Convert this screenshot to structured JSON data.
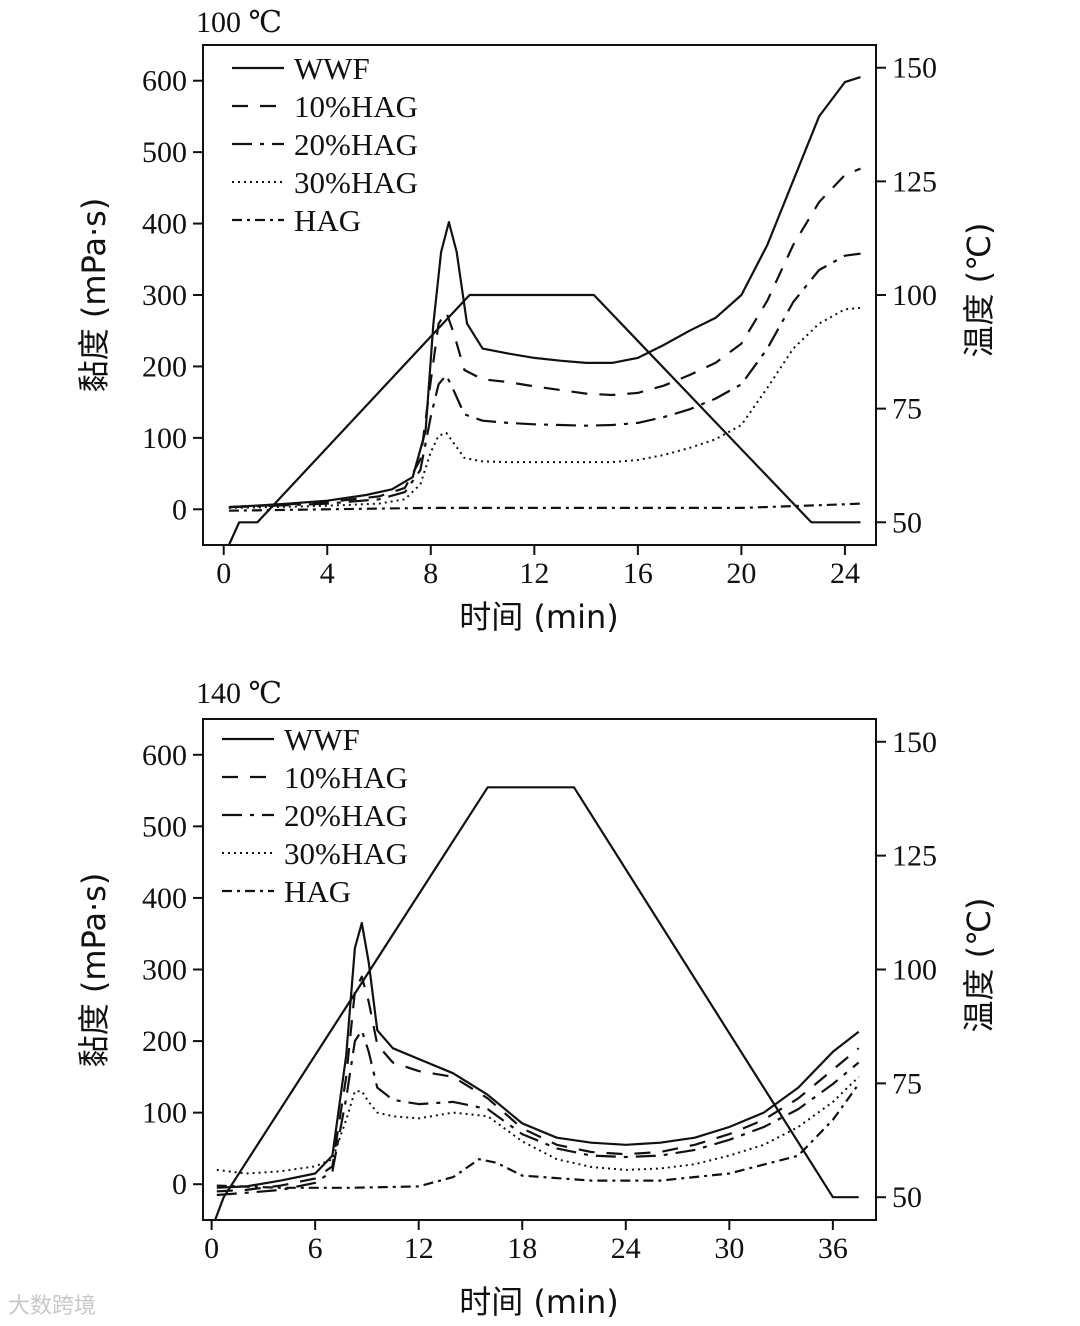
{
  "chart_data": [
    {
      "type": "line",
      "title": "100 ℃",
      "xlabel": "时间 (min)",
      "ylabel": "黏度 (mPa·s)",
      "y2label": "温度 (℃)",
      "xlim": [
        -0.8,
        25.2
      ],
      "ylim": [
        -50,
        650
      ],
      "y2lim": [
        45,
        155
      ],
      "xticks": [
        0,
        4,
        8,
        12,
        16,
        20,
        24
      ],
      "xtick_labels": [
        "0",
        "4",
        "8",
        "12",
        "16",
        "20",
        "24"
      ],
      "yticks": [
        0,
        100,
        200,
        300,
        400,
        500,
        600
      ],
      "ytick_labels": [
        "0",
        "100",
        "200",
        "300",
        "400",
        "500",
        "600"
      ],
      "y2ticks": [
        50,
        75,
        100,
        125,
        150
      ],
      "y2tick_labels": [
        "50",
        "75",
        "100",
        "125",
        "150"
      ],
      "legend_position": "top-left",
      "series": [
        {
          "name": "WWF",
          "style": "solid",
          "x": [
            0.2,
            1.2,
            2.5,
            4,
            5.5,
            6.5,
            7.3,
            7.8,
            8.1,
            8.4,
            8.7,
            9,
            9.4,
            10,
            11,
            12,
            13,
            14,
            15,
            16,
            17,
            18,
            19,
            20,
            21,
            22,
            23,
            24,
            24.6
          ],
          "y": [
            3,
            5,
            8,
            12,
            20,
            28,
            45,
            110,
            260,
            360,
            402,
            360,
            260,
            225,
            218,
            212,
            208,
            205,
            205,
            212,
            230,
            250,
            268,
            300,
            370,
            460,
            550,
            598,
            605
          ]
        },
        {
          "name": "10%HAG",
          "x": [
            0.2,
            2,
            4,
            6,
            7,
            7.6,
            8,
            8.3,
            8.6,
            8.9,
            9.3,
            10,
            11,
            12,
            13,
            14,
            15,
            16,
            17,
            18,
            19,
            20,
            21,
            22,
            23,
            24,
            24.6
          ],
          "y": [
            3,
            6,
            10,
            18,
            30,
            70,
            180,
            260,
            276,
            245,
            195,
            182,
            178,
            172,
            167,
            162,
            160,
            163,
            173,
            188,
            205,
            232,
            292,
            370,
            430,
            468,
            477
          ]
        },
        {
          "name": "20%HAG",
          "x": [
            0.2,
            2,
            4,
            6,
            7,
            7.6,
            8,
            8.3,
            8.6,
            8.9,
            9.3,
            10,
            11,
            12,
            13,
            14,
            15,
            16,
            17,
            18,
            19,
            20,
            21,
            22,
            23,
            24,
            24.6
          ],
          "y": [
            3,
            5,
            8,
            14,
            24,
            55,
            130,
            175,
            188,
            165,
            133,
            124,
            121,
            119,
            118,
            117,
            118,
            121,
            129,
            140,
            155,
            175,
            225,
            290,
            335,
            355,
            358
          ]
        },
        {
          "name": "30%HAG",
          "x": [
            0.2,
            2,
            4,
            6,
            7,
            7.6,
            8,
            8.3,
            8.6,
            8.9,
            9.3,
            10,
            11,
            12,
            13,
            14,
            15,
            16,
            17,
            18,
            19,
            20,
            21,
            22,
            23,
            24,
            24.6
          ],
          "y": [
            2,
            3,
            5,
            8,
            14,
            35,
            80,
            103,
            107,
            92,
            72,
            67,
            66,
            66,
            66,
            66,
            66,
            69,
            76,
            86,
            98,
            118,
            170,
            225,
            260,
            280,
            282
          ]
        },
        {
          "name": "HAG",
          "x": [
            0.2,
            4,
            8,
            12,
            16,
            20,
            24,
            24.6
          ],
          "y": [
            -2,
            0,
            2,
            2,
            2,
            2,
            7,
            8
          ]
        },
        {
          "name": "温度",
          "axis": "right",
          "x": [
            0.2,
            0.6,
            1.3,
            9.5,
            14.3,
            22.7,
            24.6
          ],
          "y": [
            45,
            50,
            50,
            100,
            100,
            50,
            50
          ]
        }
      ]
    },
    {
      "type": "line",
      "title": "140 ℃",
      "xlabel": "时间 (min)",
      "ylabel": "黏度 (mPa·s)",
      "y2label": "温度 (℃)",
      "xlim": [
        -0.5,
        38.5
      ],
      "ylim": [
        -50,
        650
      ],
      "y2lim": [
        45,
        155
      ],
      "xticks": [
        0,
        6,
        12,
        18,
        24,
        30,
        36
      ],
      "xtick_labels": [
        "0",
        "6",
        "12",
        "18",
        "24",
        "30",
        "36"
      ],
      "yticks": [
        0,
        100,
        200,
        300,
        400,
        500,
        600
      ],
      "ytick_labels": [
        "0",
        "100",
        "200",
        "300",
        "400",
        "500",
        "600"
      ],
      "y2ticks": [
        50,
        75,
        100,
        125,
        150
      ],
      "y2tick_labels": [
        "50",
        "75",
        "100",
        "125",
        "150"
      ],
      "legend_position": "top-left",
      "series": [
        {
          "name": "WWF",
          "style": "solid",
          "x": [
            0.3,
            2,
            4,
            6,
            7,
            7.8,
            8.3,
            8.7,
            9.1,
            9.6,
            10.5,
            12,
            14,
            16,
            18,
            20,
            22,
            24,
            26,
            28,
            30,
            32,
            34,
            36,
            37.5
          ],
          "y": [
            -5,
            -3,
            5,
            15,
            40,
            180,
            330,
            365,
            310,
            215,
            190,
            175,
            155,
            125,
            85,
            65,
            58,
            55,
            58,
            65,
            80,
            100,
            135,
            185,
            213
          ]
        },
        {
          "name": "10%HAG",
          "x": [
            0.3,
            2,
            4,
            6,
            7,
            7.8,
            8.3,
            8.7,
            9.1,
            9.6,
            10.5,
            12,
            14,
            16,
            18,
            20,
            22,
            24,
            26,
            28,
            30,
            32,
            34,
            36,
            37.5
          ],
          "y": [
            -10,
            -8,
            -2,
            8,
            25,
            150,
            270,
            290,
            255,
            195,
            170,
            158,
            150,
            120,
            78,
            55,
            45,
            42,
            45,
            55,
            70,
            90,
            120,
            160,
            190
          ]
        },
        {
          "name": "20%HAG",
          "x": [
            0.3,
            2,
            4,
            6,
            7,
            7.8,
            8.3,
            8.7,
            9.1,
            9.6,
            10.5,
            12,
            14,
            16,
            18,
            20,
            22,
            24,
            26,
            28,
            30,
            32,
            34,
            36,
            37.5
          ],
          "y": [
            -15,
            -12,
            -8,
            2,
            18,
            120,
            200,
            215,
            185,
            135,
            118,
            112,
            115,
            105,
            70,
            50,
            40,
            38,
            40,
            48,
            62,
            80,
            105,
            140,
            170
          ]
        },
        {
          "name": "30%HAG",
          "x": [
            0.3,
            2,
            4,
            6,
            7,
            7.8,
            8.3,
            8.7,
            9.1,
            9.6,
            10.5,
            12,
            14,
            16,
            18,
            20,
            22,
            24,
            26,
            28,
            30,
            32,
            34,
            36,
            37.5
          ],
          "y": [
            20,
            15,
            18,
            25,
            35,
            90,
            130,
            130,
            115,
            100,
            95,
            92,
            100,
            95,
            60,
            35,
            24,
            20,
            22,
            28,
            40,
            55,
            80,
            115,
            150
          ]
        },
        {
          "name": "HAG",
          "x": [
            0.3,
            4,
            8,
            12,
            14,
            15.5,
            16.5,
            18,
            22,
            26,
            30,
            34,
            36,
            37.5
          ],
          "y": [
            -2,
            -5,
            -5,
            -3,
            10,
            35,
            30,
            12,
            5,
            5,
            15,
            40,
            90,
            140
          ]
        },
        {
          "name": "温度",
          "axis": "right",
          "x": [
            0.2,
            0.7,
            16,
            21,
            36,
            37.5
          ],
          "y": [
            45,
            50,
            140,
            140,
            50,
            50
          ]
        }
      ]
    }
  ],
  "watermark": "大数跨境"
}
